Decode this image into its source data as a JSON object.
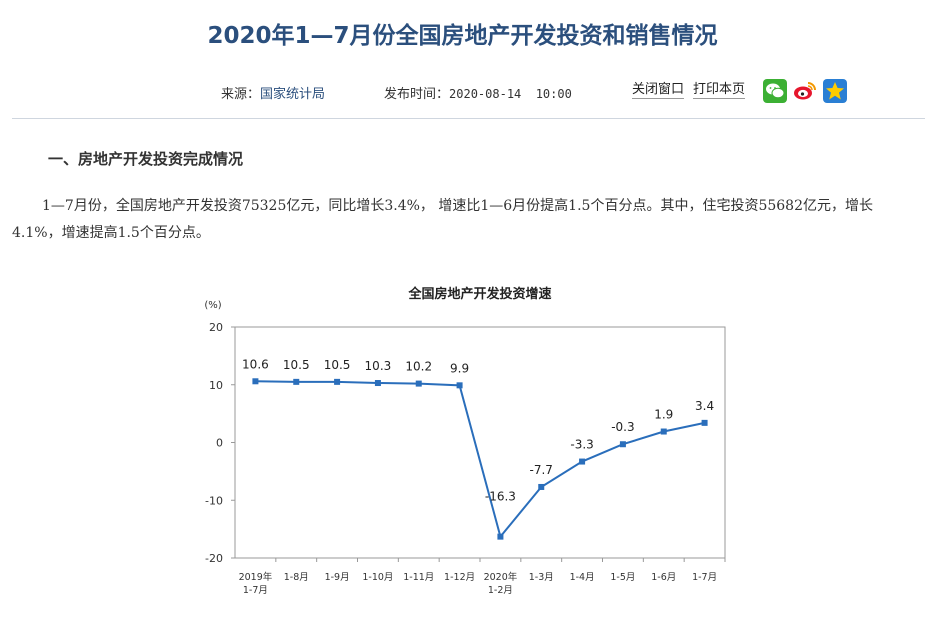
{
  "page": {
    "title": "2020年1—7月份全国房地产开发投资和销售情况",
    "source_label": "来源：",
    "source_value": "国家统计局",
    "publish_label": "发布时间：",
    "publish_value": "2020-08-14  10:00",
    "close_window": "关闭窗口",
    "print_page": "打印本页",
    "share_icons": [
      "wechat-icon",
      "weibo-icon",
      "qzone-icon"
    ],
    "section_title": "一、房地产开发投资完成情况",
    "paragraph": "1—7月份，全国房地产开发投资75325亿元，同比增长3.4%， 增速比1—6月份提高1.5个百分点。其中，住宅投资55682亿元，增长4.1%，增速提高1.5个百分点。",
    "colors": {
      "title": "#2b4f7d",
      "line": "#2a6ebb",
      "link": "#2b4f7d"
    }
  },
  "chart_data": {
    "type": "line",
    "title": "全国房地产开发投资增速",
    "ylabel": "(%)",
    "ylim": [
      -20,
      20
    ],
    "yticks": [
      20,
      10,
      0,
      -10,
      -20
    ],
    "categories": [
      [
        "2019年",
        "1-7月"
      ],
      [
        "1-8月"
      ],
      [
        "1-9月"
      ],
      [
        "1-10月"
      ],
      [
        "1-11月"
      ],
      [
        "1-12月"
      ],
      [
        "2020年",
        "1-2月"
      ],
      [
        "1-3月"
      ],
      [
        "1-4月"
      ],
      [
        "1-5月"
      ],
      [
        "1-6月"
      ],
      [
        "1-7月"
      ]
    ],
    "values": [
      10.6,
      10.5,
      10.5,
      10.3,
      10.2,
      9.9,
      -16.3,
      -7.7,
      -3.3,
      -0.3,
      1.9,
      3.4
    ],
    "data_labels": [
      "10.6",
      "10.5",
      "10.5",
      "10.3",
      "10.2",
      "9.9",
      "-16.3",
      "-7.7",
      "-3.3",
      "-0.3",
      "1.9",
      "3.4"
    ],
    "grid": false,
    "legend": "none"
  }
}
